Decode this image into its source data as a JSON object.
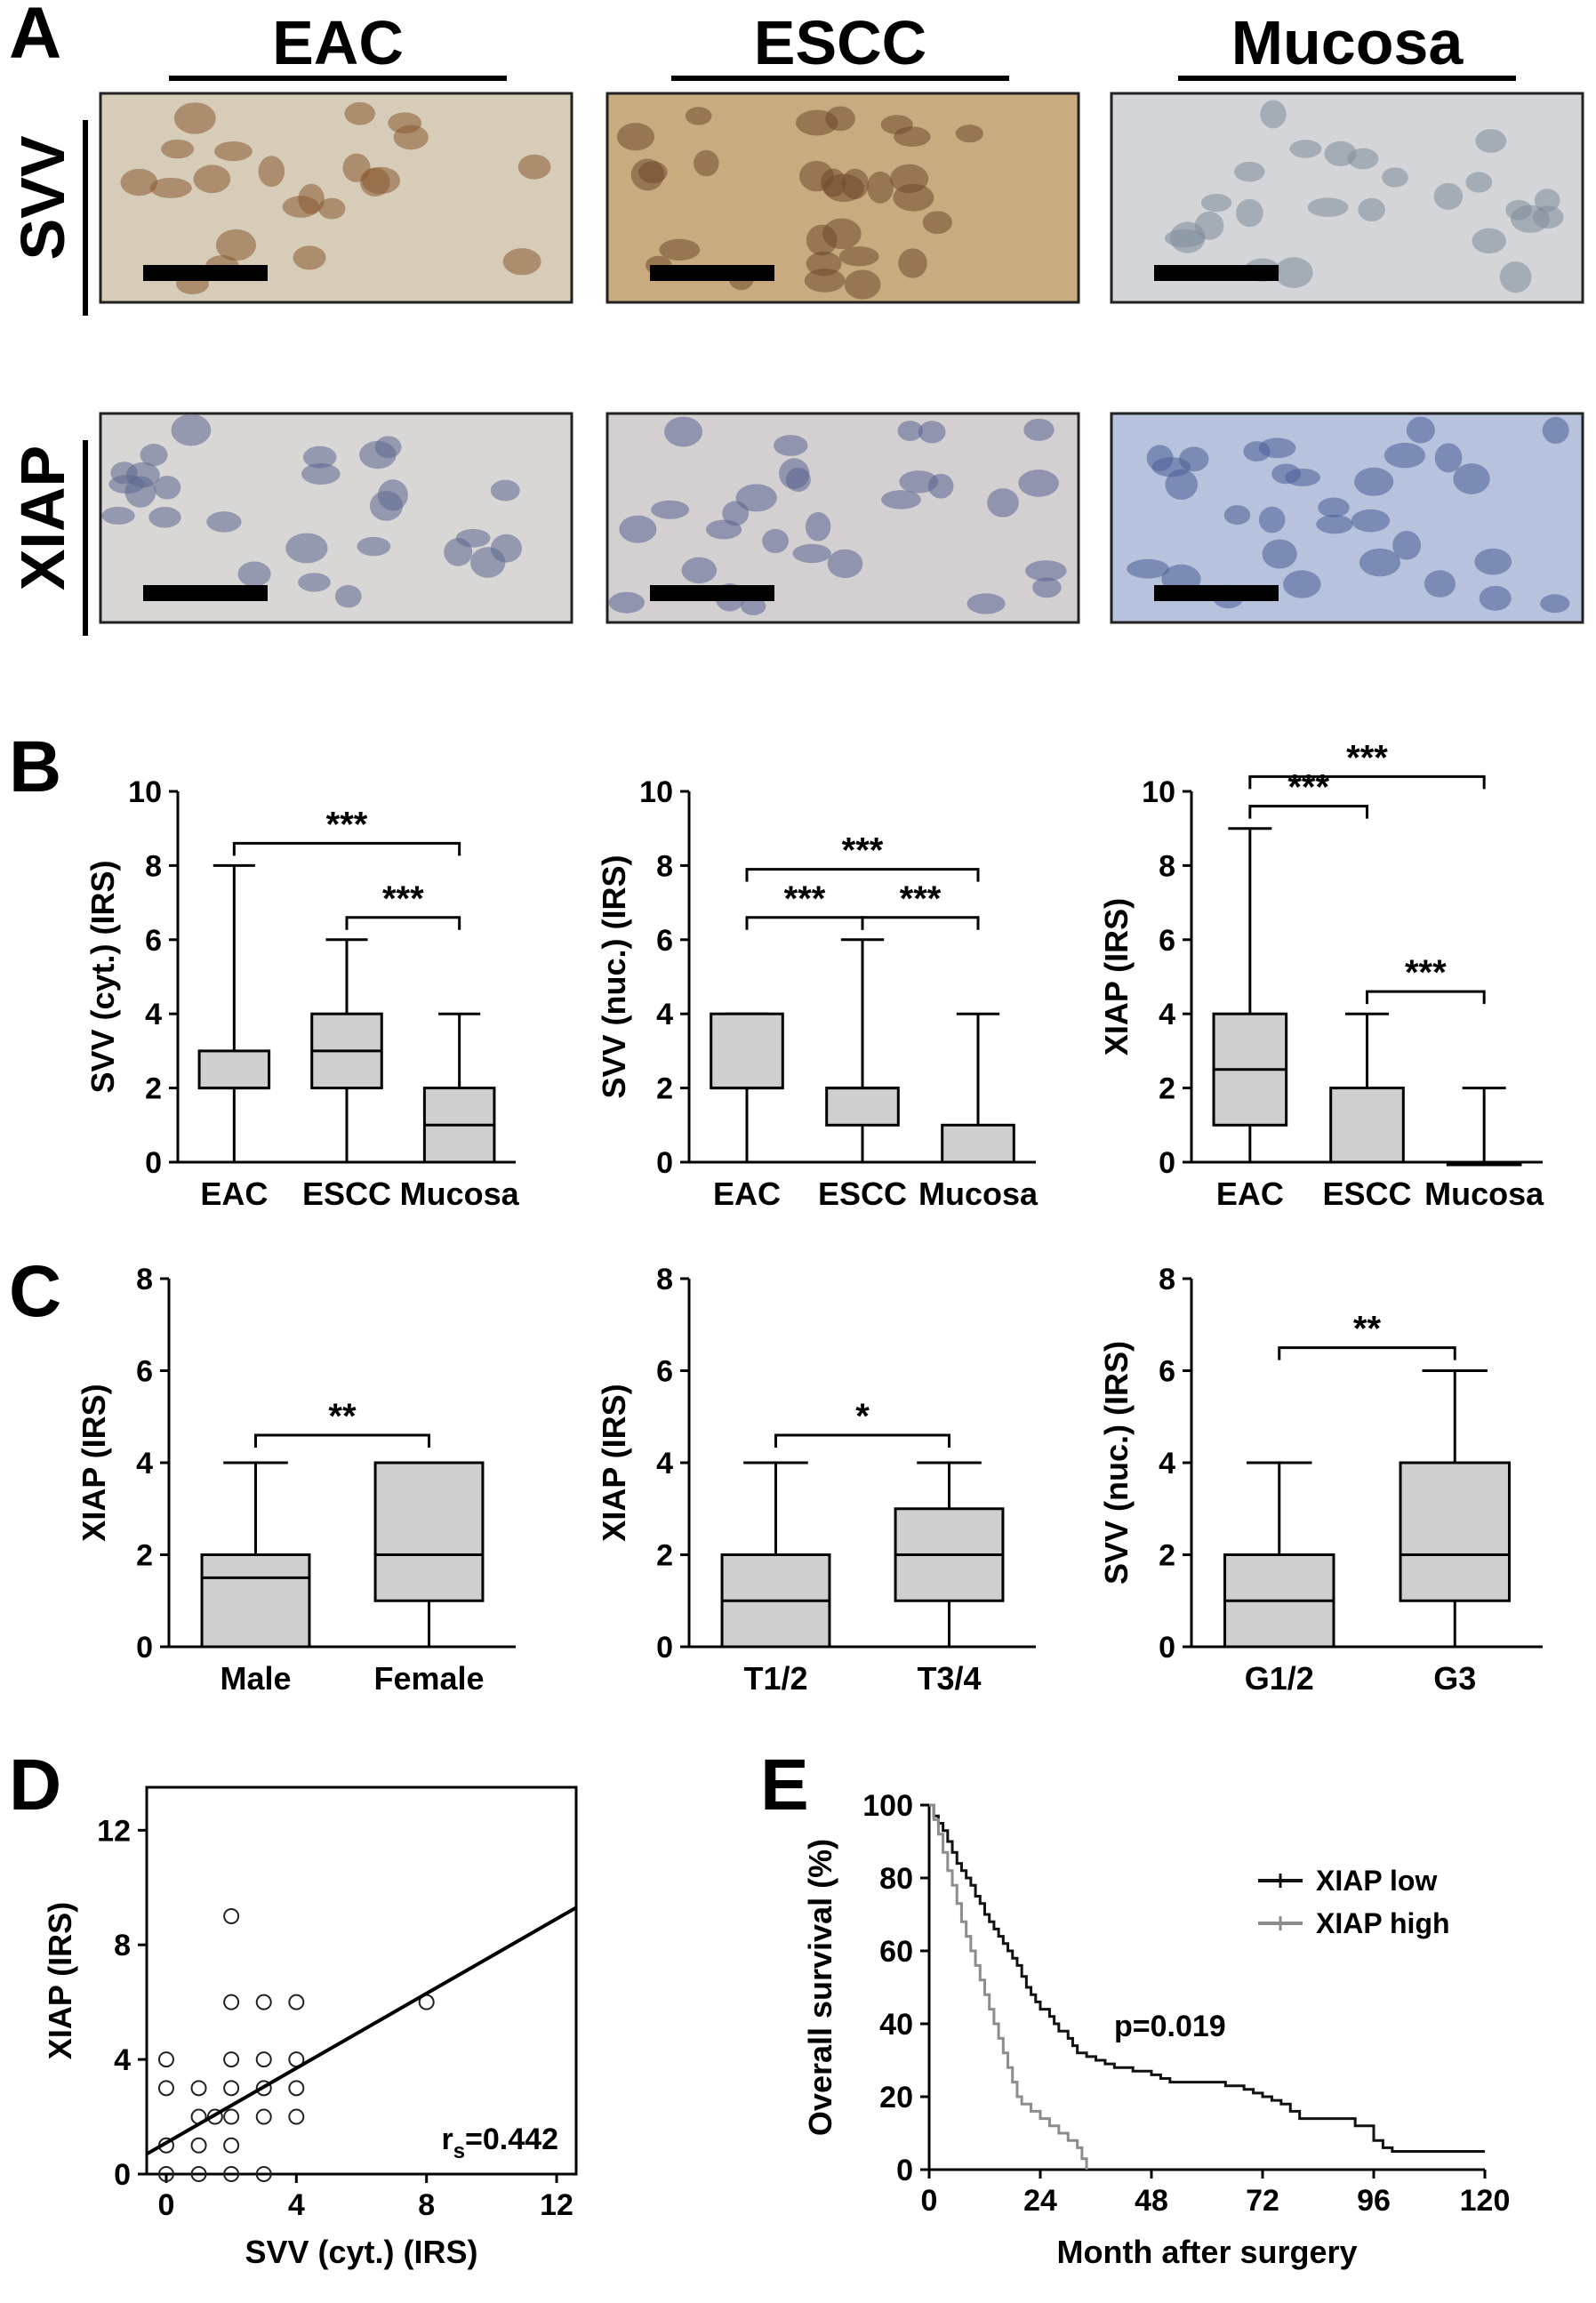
{
  "panels": {
    "a": "A",
    "b": "B",
    "c": "C",
    "d": "D",
    "e": "E"
  },
  "panel_a": {
    "columns": [
      "EAC",
      "ESCC",
      "Mucosa"
    ],
    "rows": [
      "SVV",
      "XIAP"
    ],
    "tiles": [
      {
        "row": 0,
        "col": 0,
        "bg": "#d6ccb8",
        "nuc": "#8a5a32",
        "dots": 22
      },
      {
        "row": 0,
        "col": 1,
        "bg": "#c9ab80",
        "nuc": "#6e4a2c",
        "dots": 28
      },
      {
        "row": 0,
        "col": 2,
        "bg": "#d3d5d8",
        "nuc": "#7e8c9a",
        "dots": 24
      },
      {
        "row": 1,
        "col": 0,
        "bg": "#d9d6d6",
        "nuc": "#5c6890",
        "dots": 26
      },
      {
        "row": 1,
        "col": 1,
        "bg": "#d4d0d2",
        "nuc": "#5a6390",
        "dots": 28
      },
      {
        "row": 1,
        "col": 2,
        "bg": "#b7c2dc",
        "nuc": "#4d5f98",
        "dots": 30
      }
    ]
  },
  "chart_data": [
    {
      "id": "B1",
      "type": "box",
      "ylabel": "SVV (cyt.) (IRS)",
      "ylim": [
        0,
        10
      ],
      "yticks": [
        0,
        2,
        4,
        6,
        8,
        10
      ],
      "categories": [
        "EAC",
        "ESCC",
        "Mucosa"
      ],
      "boxes": [
        {
          "min": 0,
          "q1": 2,
          "median": 2,
          "q3": 3,
          "max": 8
        },
        {
          "min": 0,
          "q1": 2,
          "median": 3,
          "q3": 4,
          "max": 6
        },
        {
          "min": 0,
          "q1": 0,
          "median": 1,
          "q3": 2,
          "max": 4
        }
      ],
      "significance": [
        {
          "from": 0,
          "to": 2,
          "y": 8.6,
          "label": "***"
        },
        {
          "from": 1,
          "to": 2,
          "y": 6.6,
          "label": "***"
        }
      ]
    },
    {
      "id": "B2",
      "type": "box",
      "ylabel": "SVV (nuc.) (IRS)",
      "ylim": [
        0,
        10
      ],
      "yticks": [
        0,
        2,
        4,
        6,
        8,
        10
      ],
      "categories": [
        "EAC",
        "ESCC",
        "Mucosa"
      ],
      "boxes": [
        {
          "min": 0,
          "q1": 2,
          "median": 2,
          "q3": 4,
          "max": 4
        },
        {
          "min": 0,
          "q1": 1,
          "median": 2,
          "q3": 2,
          "max": 6
        },
        {
          "min": 0,
          "q1": 0,
          "median": 0,
          "q3": 1,
          "max": 4
        }
      ],
      "significance": [
        {
          "from": 0,
          "to": 2,
          "y": 7.9,
          "label": "***"
        },
        {
          "from": 0,
          "to": 1,
          "y": 6.6,
          "label": "***"
        },
        {
          "from": 1,
          "to": 2,
          "y": 6.6,
          "label": "***"
        }
      ]
    },
    {
      "id": "B3",
      "type": "box",
      "ylabel": "XIAP (IRS)",
      "ylim": [
        0,
        10
      ],
      "yticks": [
        0,
        2,
        4,
        6,
        8,
        10
      ],
      "categories": [
        "EAC",
        "ESCC",
        "Mucosa"
      ],
      "boxes": [
        {
          "min": 0,
          "q1": 1,
          "median": 2.5,
          "q3": 4,
          "max": 9
        },
        {
          "min": 0,
          "q1": 0,
          "median": 0,
          "q3": 2,
          "max": 4
        },
        {
          "min": 0,
          "q1": 0,
          "median": 0,
          "q3": 0,
          "max": 2
        }
      ],
      "significance": [
        {
          "from": 0,
          "to": 2,
          "y": 10.4,
          "label": "***"
        },
        {
          "from": 0,
          "to": 1,
          "y": 9.6,
          "label": "***"
        },
        {
          "from": 1,
          "to": 2,
          "y": 4.6,
          "label": "***"
        }
      ]
    },
    {
      "id": "C1",
      "type": "box",
      "ylabel": "XIAP (IRS)",
      "ylim": [
        0,
        8
      ],
      "yticks": [
        0,
        2,
        4,
        6,
        8
      ],
      "categories": [
        "Male",
        "Female"
      ],
      "boxes": [
        {
          "min": 0,
          "q1": 0,
          "median": 1.5,
          "q3": 2,
          "max": 4
        },
        {
          "min": 0,
          "q1": 1,
          "median": 2,
          "q3": 4,
          "max": 4
        }
      ],
      "significance": [
        {
          "from": 0,
          "to": 1,
          "y": 4.6,
          "label": "**"
        }
      ]
    },
    {
      "id": "C2",
      "type": "box",
      "ylabel": "XIAP (IRS)",
      "ylim": [
        0,
        8
      ],
      "yticks": [
        0,
        2,
        4,
        6,
        8
      ],
      "categories": [
        "T1/2",
        "T3/4"
      ],
      "boxes": [
        {
          "min": 0,
          "q1": 0,
          "median": 1,
          "q3": 2,
          "max": 4
        },
        {
          "min": 0,
          "q1": 1,
          "median": 2,
          "q3": 3,
          "max": 4
        }
      ],
      "significance": [
        {
          "from": 0,
          "to": 1,
          "y": 4.6,
          "label": "*"
        }
      ]
    },
    {
      "id": "C3",
      "type": "box",
      "ylabel": "SVV (nuc.) (IRS)",
      "ylim": [
        0,
        8
      ],
      "yticks": [
        0,
        2,
        4,
        6,
        8
      ],
      "categories": [
        "G1/2",
        "G3"
      ],
      "boxes": [
        {
          "min": 0,
          "q1": 0,
          "median": 1,
          "q3": 2,
          "max": 4
        },
        {
          "min": 0,
          "q1": 1,
          "median": 2,
          "q3": 4,
          "max": 6
        }
      ],
      "significance": [
        {
          "from": 0,
          "to": 1,
          "y": 6.5,
          "label": "**"
        }
      ]
    },
    {
      "id": "D",
      "type": "scatter",
      "xlabel": "SVV (cyt.) (IRS)",
      "ylabel": "XIAP (IRS)",
      "xlim": [
        -0.6,
        12.6
      ],
      "ylim": [
        0,
        13.5
      ],
      "xticks": [
        0,
        4,
        8,
        12
      ],
      "yticks": [
        0,
        4,
        8,
        12
      ],
      "points": [
        [
          0,
          0
        ],
        [
          0,
          1
        ],
        [
          0,
          3
        ],
        [
          0,
          4
        ],
        [
          1,
          0
        ],
        [
          1,
          1
        ],
        [
          1,
          2
        ],
        [
          1,
          3
        ],
        [
          1.5,
          2
        ],
        [
          2,
          0
        ],
        [
          2,
          1
        ],
        [
          2,
          2
        ],
        [
          2,
          3
        ],
        [
          2,
          4
        ],
        [
          2,
          6
        ],
        [
          2,
          9
        ],
        [
          3,
          0
        ],
        [
          3,
          2
        ],
        [
          3,
          3
        ],
        [
          3,
          4
        ],
        [
          3,
          6
        ],
        [
          4,
          2
        ],
        [
          4,
          3
        ],
        [
          4,
          4
        ],
        [
          4,
          6
        ],
        [
          8,
          6
        ]
      ],
      "fit_line": {
        "x0": -0.6,
        "y0": 0.7,
        "x1": 12.6,
        "y1": 9.3
      },
      "annotation": {
        "text": "=0.442",
        "symbol": "r",
        "subscript": "s"
      }
    },
    {
      "id": "E",
      "type": "line",
      "subtype": "kaplan-meier",
      "xlabel": "Month after surgery",
      "ylabel": "Overall survival (%)",
      "xlim": [
        0,
        120
      ],
      "ylim": [
        0,
        100
      ],
      "xticks": [
        0,
        24,
        48,
        72,
        96,
        120
      ],
      "yticks": [
        0,
        20,
        40,
        60,
        80,
        100
      ],
      "pvalue": "p=0.019",
      "legend_position": "top-right",
      "series": [
        {
          "name": "XIAP low",
          "color": "#111111",
          "points": [
            [
              0,
              100
            ],
            [
              1,
              97
            ],
            [
              2,
              95
            ],
            [
              3,
              93
            ],
            [
              4,
              90
            ],
            [
              5,
              87
            ],
            [
              6,
              84
            ],
            [
              7,
              82
            ],
            [
              8,
              80
            ],
            [
              9,
              78
            ],
            [
              10,
              75
            ],
            [
              11,
              73
            ],
            [
              12,
              70
            ],
            [
              13,
              68
            ],
            [
              14,
              66
            ],
            [
              15,
              64
            ],
            [
              16,
              62
            ],
            [
              17,
              60
            ],
            [
              18,
              58
            ],
            [
              19,
              56
            ],
            [
              20,
              53
            ],
            [
              21,
              50
            ],
            [
              22,
              48
            ],
            [
              23,
              46
            ],
            [
              24,
              44
            ],
            [
              26,
              42
            ],
            [
              27,
              40
            ],
            [
              28,
              38
            ],
            [
              30,
              36
            ],
            [
              31,
              34
            ],
            [
              32,
              32
            ],
            [
              34,
              31
            ],
            [
              36,
              30
            ],
            [
              38,
              29
            ],
            [
              40,
              28
            ],
            [
              44,
              27
            ],
            [
              48,
              26
            ],
            [
              50,
              25
            ],
            [
              52,
              24
            ],
            [
              60,
              24
            ],
            [
              64,
              23
            ],
            [
              68,
              22
            ],
            [
              70,
              21
            ],
            [
              72,
              20
            ],
            [
              74,
              19
            ],
            [
              76,
              18
            ],
            [
              78,
              16
            ],
            [
              80,
              14
            ],
            [
              90,
              14
            ],
            [
              92,
              12
            ],
            [
              96,
              8
            ],
            [
              98,
              6
            ],
            [
              100,
              5
            ],
            [
              120,
              5
            ]
          ]
        },
        {
          "name": "XIAP high",
          "color": "#8c8c8c",
          "points": [
            [
              0,
              100
            ],
            [
              1,
              96
            ],
            [
              2,
              92
            ],
            [
              3,
              87
            ],
            [
              4,
              82
            ],
            [
              5,
              78
            ],
            [
              6,
              73
            ],
            [
              7,
              68
            ],
            [
              8,
              64
            ],
            [
              9,
              60
            ],
            [
              10,
              56
            ],
            [
              11,
              52
            ],
            [
              12,
              48
            ],
            [
              13,
              44
            ],
            [
              14,
              40
            ],
            [
              15,
              36
            ],
            [
              16,
              32
            ],
            [
              17,
              28
            ],
            [
              18,
              24
            ],
            [
              19,
              20
            ],
            [
              20,
              18
            ],
            [
              22,
              16
            ],
            [
              24,
              14
            ],
            [
              26,
              12
            ],
            [
              28,
              10
            ],
            [
              30,
              8
            ],
            [
              32,
              6
            ],
            [
              33,
              3
            ],
            [
              34,
              0
            ]
          ]
        }
      ]
    }
  ]
}
